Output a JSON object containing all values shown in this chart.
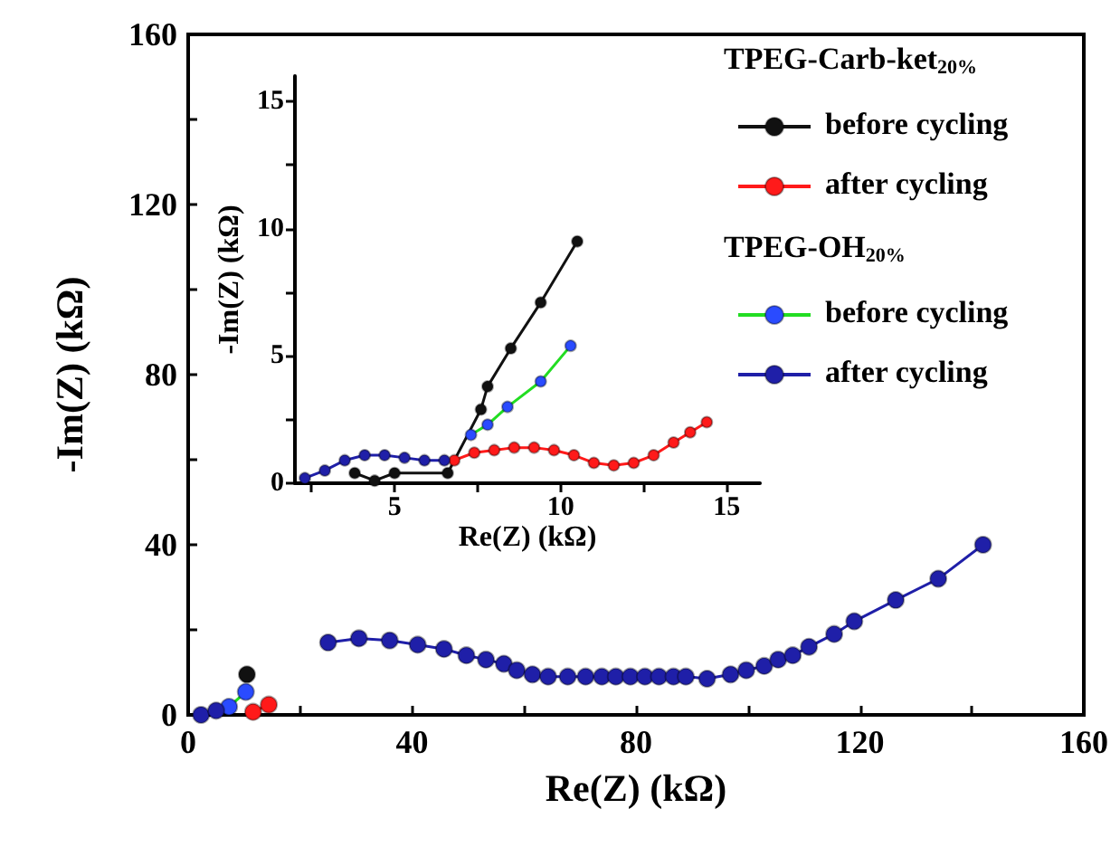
{
  "chart_data": [
    {
      "type": "line",
      "xlabel": "Re(Z) (kΩ)",
      "ylabel": "-Im(Z) (kΩ)",
      "xlim": [
        0,
        160
      ],
      "ylim": [
        0,
        160
      ],
      "xticks": [
        0,
        {
          "value": 20,
          "label": null
        },
        40,
        {
          "value": 60,
          "label": null
        },
        80,
        {
          "value": 100,
          "label": null
        },
        120,
        {
          "value": 140,
          "label": null
        },
        160
      ],
      "yticks": [
        0,
        {
          "value": 20,
          "label": null
        },
        40,
        {
          "value": 60,
          "label": null
        },
        80,
        {
          "value": 100,
          "label": null
        },
        120,
        {
          "value": 140,
          "label": null
        },
        160
      ],
      "grid": false,
      "legend": false,
      "marker": "circle",
      "line_style": "solid",
      "series": [
        {
          "color": "#111111",
          "x": [
            10.5
          ],
          "values": [
            9.5
          ]
        },
        {
          "color": "#ff1a1a",
          "x": [
            11.6,
            14.4
          ],
          "values": [
            0.7,
            2.4
          ]
        },
        {
          "color": "#22dd22",
          "colors": [
            "#2a4bff",
            "#2a4bff"
          ],
          "x": [
            7.3,
            10.3
          ],
          "values": [
            1.9,
            5.4
          ]
        },
        {
          "color": "#1f1fa8",
          "x": [
            2.3,
            5.0,
            16,
            25,
            30.5,
            36,
            41,
            45.7,
            49.7,
            53.2,
            56.4,
            58.7,
            61.5,
            64.3,
            67.8,
            71,
            73.9,
            76.4,
            79,
            81.6,
            84.1,
            86.7,
            88.9,
            92.7,
            96.9,
            99.7,
            102.9,
            105.4,
            108,
            110.9,
            115.4,
            119,
            126.4,
            134,
            142
          ],
          "values": [
            0,
            1,
            null,
            17,
            18,
            17.5,
            16.5,
            15.5,
            14,
            13,
            12,
            10.5,
            9.5,
            9,
            9,
            9,
            9,
            9,
            9,
            9,
            9,
            9,
            9,
            8.5,
            9.5,
            10.5,
            11.5,
            13,
            14,
            16,
            19,
            22,
            27,
            32,
            40
          ]
        }
      ]
    },
    {
      "type": "line",
      "xlabel": "Re(Z) (kΩ)",
      "ylabel": "-Im(Z) (kΩ)",
      "xlim": [
        2,
        16
      ],
      "ylim": [
        0,
        16
      ],
      "xticks": [
        {
          "value": 2.5,
          "label": null
        },
        5,
        {
          "value": 7.5,
          "label": null
        },
        10,
        {
          "value": 12.5,
          "label": null
        },
        15
      ],
      "yticks": [
        0,
        {
          "value": 2.5,
          "label": null
        },
        5,
        {
          "value": 7.5,
          "label": null
        },
        10,
        {
          "value": 12.5,
          "label": null
        },
        15
      ],
      "grid": false,
      "legend": "top right",
      "marker": "circle",
      "line_style": "solid",
      "annotations": [
        "TPEG-Carb-ket$_{20%}$",
        "TPEG-OH$_{20%}$"
      ],
      "series": [
        {
          "name": "before cycling",
          "color": "#111111",
          "x": [
            3.8,
            4.4,
            5.0,
            6.6,
            7.6,
            7.8,
            8.5,
            9.4,
            10.5
          ],
          "values": [
            0.4,
            0.1,
            0.4,
            0.4,
            2.9,
            3.8,
            5.3,
            7.1,
            9.5
          ]
        },
        {
          "name": "after cycling",
          "color": "#ff1a1a",
          "x": [
            6.8,
            7.4,
            8.0,
            8.6,
            9.2,
            9.8,
            10.4,
            11.0,
            11.6,
            12.2,
            12.8,
            13.4,
            13.9,
            14.4
          ],
          "values": [
            0.9,
            1.2,
            1.3,
            1.4,
            1.4,
            1.3,
            1.1,
            0.8,
            0.7,
            0.8,
            1.1,
            1.6,
            2.0,
            2.4
          ]
        },
        {
          "name": "before cycling",
          "color": "#22dd22",
          "colors": [
            "#2a4bff",
            "#2a4bff",
            "#2a4bff",
            "#2a4bff",
            "#2a4bff"
          ],
          "x": [
            7.3,
            7.8,
            8.4,
            9.4,
            10.3
          ],
          "values": [
            1.9,
            2.3,
            3.0,
            4.0,
            5.4
          ]
        },
        {
          "name": "after cycling",
          "color": "#1f1fa8",
          "x": [
            2.3,
            2.9,
            3.5,
            4.1,
            4.7,
            5.3,
            5.9,
            6.5
          ],
          "values": [
            0.2,
            0.5,
            0.9,
            1.1,
            1.1,
            1.0,
            0.9,
            0.9
          ]
        }
      ]
    }
  ]
}
